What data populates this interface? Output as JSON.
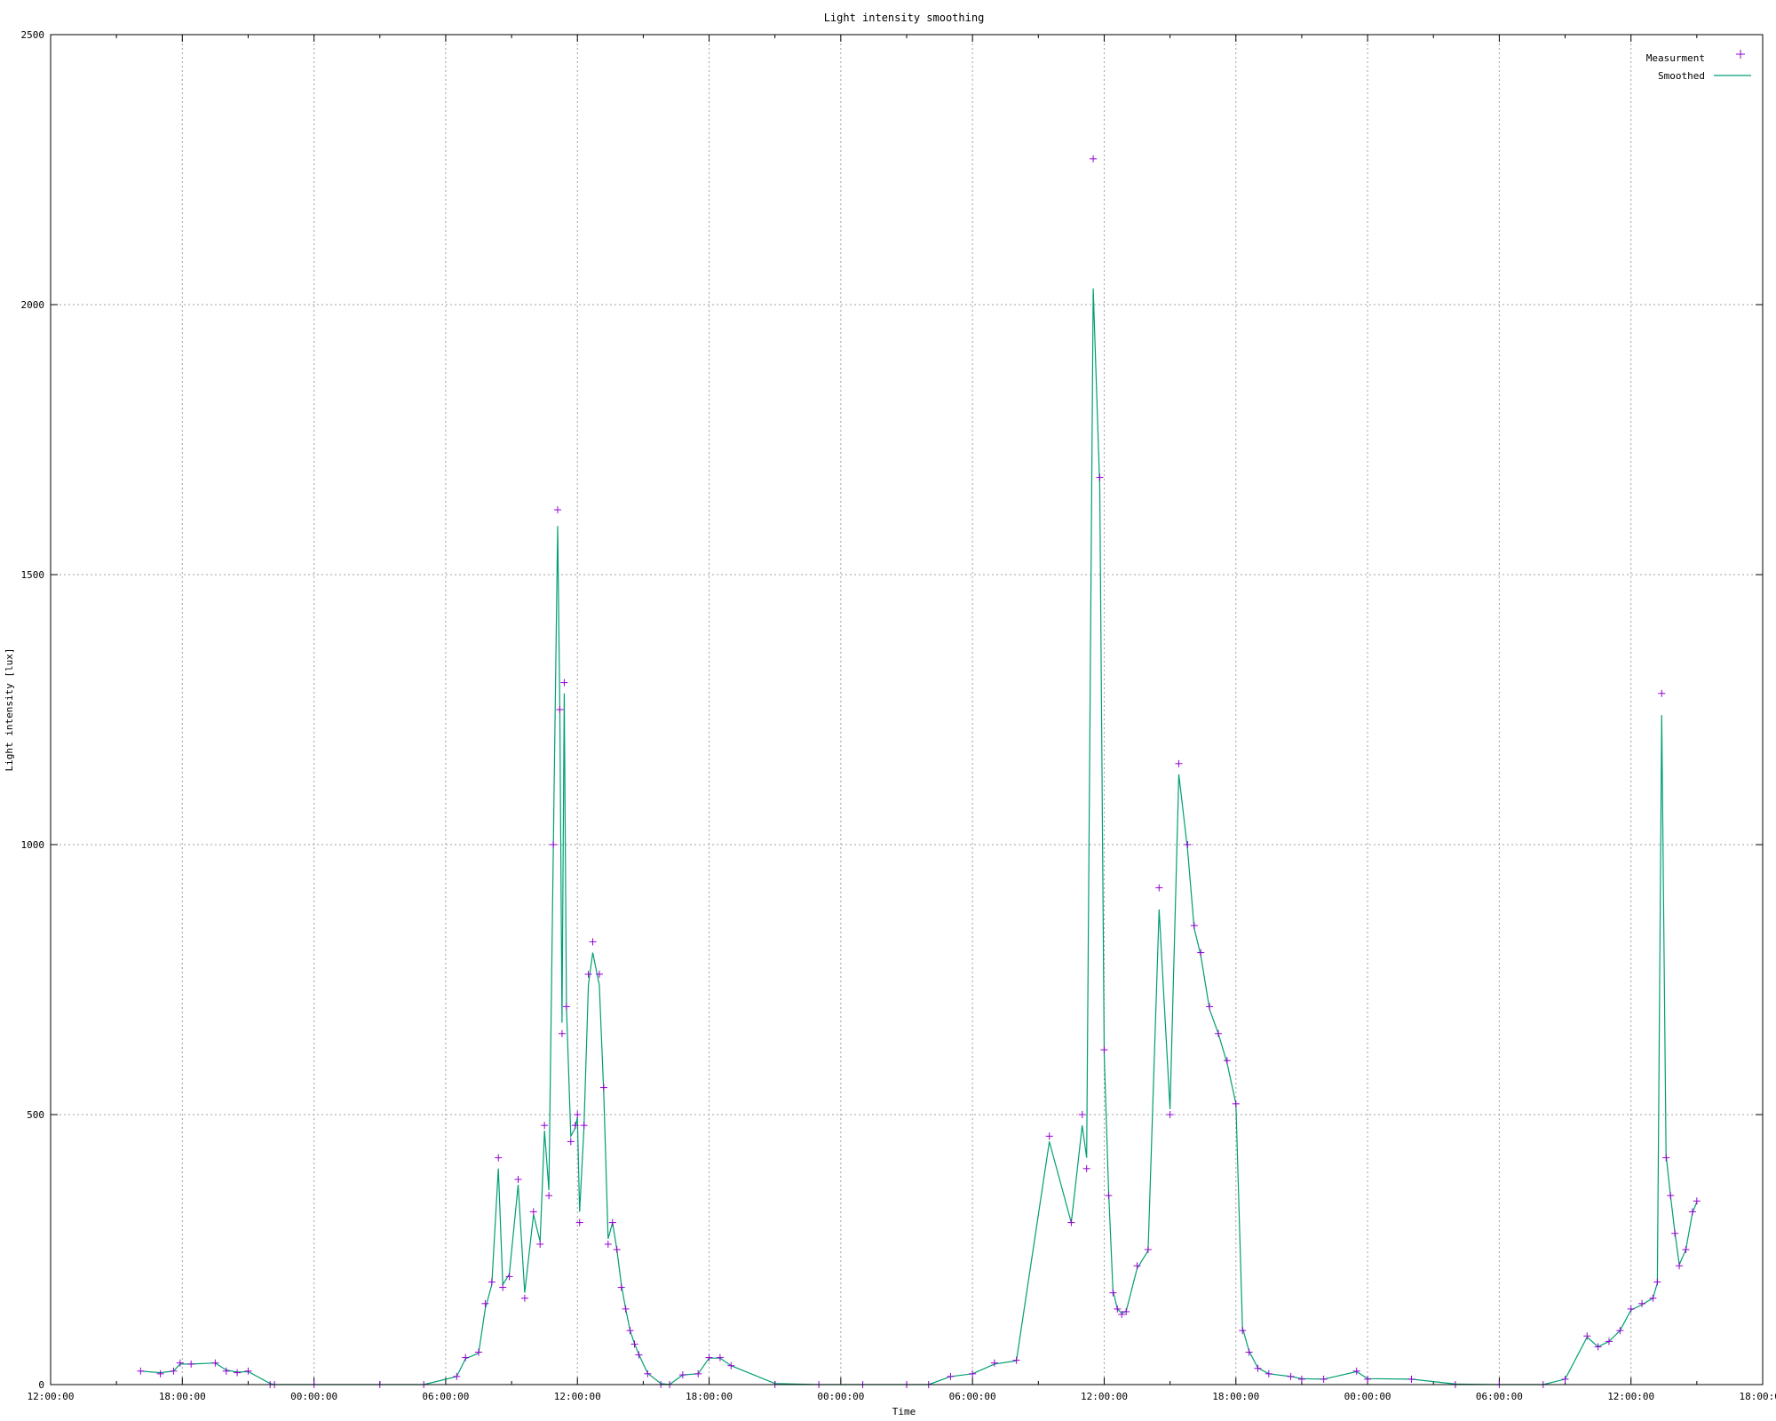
{
  "chart_data": {
    "type": "scatter",
    "title": "Light intensity smoothing",
    "xlabel": "Time",
    "ylabel": "Light intensity [lux]",
    "ylim": [
      0,
      2500
    ],
    "xlim_hours": [
      0,
      78
    ],
    "grid": true,
    "legend_position": "top-right",
    "y_ticks": [
      "0",
      "500",
      "1000",
      "1500",
      "2000",
      "2500"
    ],
    "x_ticks": [
      "12:00:00",
      "18:00:00",
      "00:00:00",
      "06:00:00",
      "12:00:00",
      "18:00:00",
      "00:00:00",
      "06:00:00",
      "12:00:00",
      "18:00:00",
      "00:00:00",
      "06:00:00",
      "12:00:00",
      "18:00:00"
    ],
    "series": [
      {
        "name": "Measurment",
        "style": "points",
        "marker": "+",
        "color": "#9400d3",
        "x": [
          4.1,
          5.0,
          5.6,
          5.9,
          6.4,
          7.5,
          8.0,
          8.5,
          9.0,
          10.0,
          10.2,
          12.0,
          15.0,
          17.0,
          18.5,
          18.9,
          19.5,
          19.8,
          20.1,
          20.4,
          20.6,
          20.9,
          21.3,
          21.6,
          22.0,
          22.3,
          22.5,
          22.7,
          22.9,
          23.1,
          23.2,
          23.3,
          23.4,
          23.5,
          23.7,
          23.9,
          24.0,
          24.1,
          24.3,
          24.5,
          24.7,
          25.0,
          25.2,
          25.4,
          25.6,
          25.8,
          26.0,
          26.2,
          26.4,
          26.6,
          26.8,
          27.2,
          27.8,
          28.2,
          28.8,
          29.5,
          30.0,
          30.5,
          31.0,
          33.0,
          35.0,
          37.0,
          39.0,
          40.0,
          41.0,
          42.0,
          43.0,
          44.0,
          45.5,
          46.5,
          47.0,
          47.2,
          47.5,
          47.8,
          48.0,
          48.2,
          48.4,
          48.6,
          48.8,
          49.0,
          49.5,
          50.0,
          50.5,
          51.0,
          51.4,
          51.8,
          52.1,
          52.4,
          52.8,
          53.2,
          53.6,
          54.0,
          54.3,
          54.6,
          55.0,
          55.5,
          56.5,
          57.0,
          58.0,
          59.5,
          60.0,
          62.0,
          64.0,
          66.0,
          68.0,
          69.0,
          70.0,
          70.5,
          71.0,
          71.5,
          72.0,
          72.5,
          73.0,
          73.2,
          73.4,
          73.6,
          73.8,
          74.0,
          74.2,
          74.5,
          74.8,
          75.0
        ],
        "y": [
          25,
          20,
          25,
          40,
          38,
          40,
          25,
          22,
          25,
          0,
          0,
          0,
          0,
          0,
          15,
          50,
          60,
          150,
          190,
          420,
          180,
          200,
          380,
          160,
          320,
          260,
          480,
          350,
          1000,
          1620,
          1250,
          650,
          1300,
          700,
          450,
          480,
          500,
          300,
          480,
          760,
          820,
          760,
          550,
          260,
          300,
          250,
          180,
          140,
          100,
          75,
          55,
          20,
          0,
          0,
          18,
          20,
          50,
          50,
          35,
          0,
          0,
          0,
          0,
          0,
          15,
          20,
          40,
          45,
          460,
          300,
          500,
          400,
          2270,
          1680,
          620,
          350,
          170,
          140,
          130,
          135,
          220,
          250,
          920,
          500,
          1150,
          1000,
          850,
          800,
          700,
          650,
          600,
          520,
          100,
          60,
          30,
          20,
          15,
          10,
          10,
          25,
          10,
          10,
          0,
          0,
          0,
          10,
          90,
          70,
          80,
          100,
          140,
          150,
          160,
          190,
          1280,
          420,
          350,
          280,
          220,
          250,
          320,
          340
        ]
      },
      {
        "name": "Smoothed",
        "style": "line",
        "color": "#009e73",
        "x": [
          4.1,
          5.0,
          5.6,
          5.9,
          6.4,
          7.5,
          8.0,
          8.5,
          9.0,
          10.0,
          10.2,
          12.0,
          15.0,
          17.0,
          18.5,
          18.9,
          19.5,
          19.8,
          20.1,
          20.4,
          20.6,
          20.9,
          21.3,
          21.6,
          22.0,
          22.3,
          22.5,
          22.7,
          22.9,
          23.1,
          23.2,
          23.3,
          23.4,
          23.5,
          23.7,
          23.9,
          24.0,
          24.1,
          24.3,
          24.5,
          24.7,
          25.0,
          25.2,
          25.4,
          25.6,
          25.8,
          26.0,
          26.2,
          26.4,
          26.6,
          26.8,
          27.2,
          27.8,
          28.2,
          28.8,
          29.5,
          30.0,
          30.5,
          31.0,
          33.0,
          35.0,
          37.0,
          39.0,
          40.0,
          41.0,
          42.0,
          43.0,
          44.0,
          45.5,
          46.5,
          47.0,
          47.2,
          47.5,
          47.8,
          48.0,
          48.2,
          48.4,
          48.6,
          48.8,
          49.0,
          49.5,
          50.0,
          50.5,
          51.0,
          51.4,
          51.8,
          52.1,
          52.4,
          52.8,
          53.2,
          53.6,
          54.0,
          54.3,
          54.6,
          55.0,
          55.5,
          56.5,
          57.0,
          58.0,
          59.5,
          60.0,
          62.0,
          64.0,
          66.0,
          68.0,
          69.0,
          70.0,
          70.5,
          71.0,
          71.5,
          72.0,
          72.5,
          73.0,
          73.2,
          73.4,
          73.6,
          73.8,
          74.0,
          74.2,
          74.5,
          74.8,
          75.0
        ],
        "y": [
          25,
          22,
          25,
          38,
          38,
          40,
          27,
          23,
          24,
          2,
          0,
          0,
          0,
          0,
          15,
          48,
          58,
          140,
          185,
          400,
          185,
          205,
          370,
          170,
          315,
          265,
          470,
          360,
          980,
          1590,
          1240,
          670,
          1280,
          700,
          460,
          475,
          495,
          320,
          475,
          740,
          800,
          740,
          540,
          270,
          300,
          250,
          185,
          140,
          100,
          76,
          56,
          21,
          2,
          0,
          18,
          20,
          49,
          49,
          35,
          2,
          0,
          0,
          0,
          0,
          15,
          20,
          38,
          44,
          450,
          300,
          480,
          420,
          2030,
          1660,
          610,
          360,
          175,
          140,
          132,
          136,
          215,
          248,
          880,
          510,
          1130,
          990,
          845,
          795,
          695,
          650,
          595,
          520,
          105,
          62,
          31,
          20,
          15,
          11,
          10,
          24,
          11,
          10,
          1,
          0,
          0,
          10,
          88,
          70,
          80,
          100,
          138,
          148,
          160,
          188,
          1240,
          425,
          350,
          282,
          222,
          250,
          318,
          338
        ]
      }
    ]
  }
}
